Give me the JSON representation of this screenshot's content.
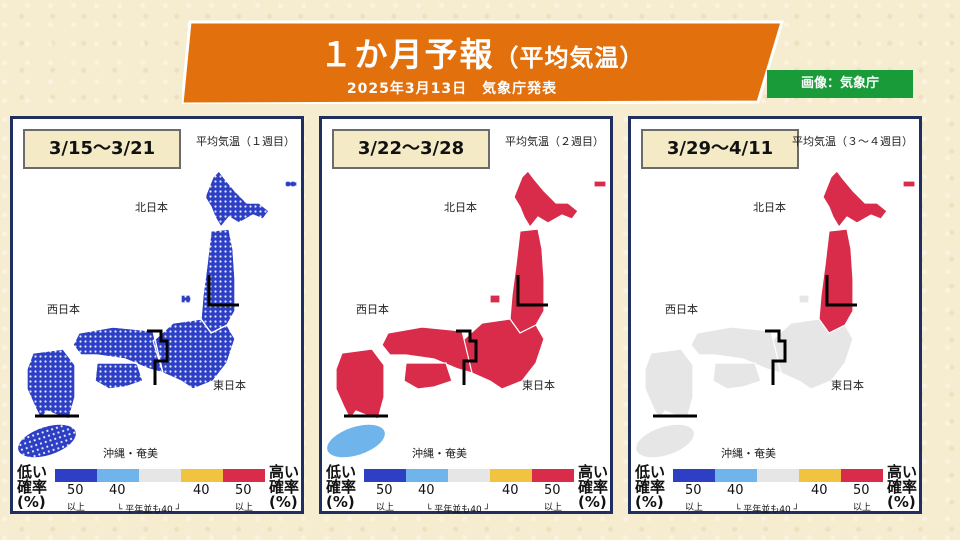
{
  "header": {
    "title_main": "１か月予報",
    "title_sub": "（平均気温）",
    "date": "2025年3月13日　気象庁発表",
    "credit": "画像：気象庁"
  },
  "colors": {
    "banner": "#e2700d",
    "low": "#2d3fc4",
    "low_light": "#6fb4ea",
    "normal": "#e6e6e6",
    "high_light": "#f0c440",
    "high": "#d92b4a"
  },
  "panels": [
    {
      "period": "3/15～3/21",
      "week_label": "平均気温（１週目）",
      "fill": "low",
      "fill_okinawa": "low",
      "pattern": "dots"
    },
    {
      "period": "3/22～3/28",
      "week_label": "平均気温（２週目）",
      "fill": "high",
      "fill_okinawa": "low_light",
      "pattern": "none"
    },
    {
      "period": "3/29～4/11",
      "week_label": "平均気温（３～４週目）",
      "fill": "normal",
      "fill_okinawa": "normal",
      "pattern": "split"
    }
  ],
  "regions": {
    "north": "北日本",
    "west": "西日本",
    "east": "東日本",
    "okinawa": "沖縄・奄美"
  },
  "legend": {
    "low_label": [
      "低い",
      "確率",
      "(%)"
    ],
    "high_label": [
      "高い",
      "確率",
      "(%)"
    ],
    "ticks": [
      "50",
      "40",
      "40",
      "50"
    ],
    "above": "以上",
    "normal_note": "└ 平年並も40 ┘"
  }
}
